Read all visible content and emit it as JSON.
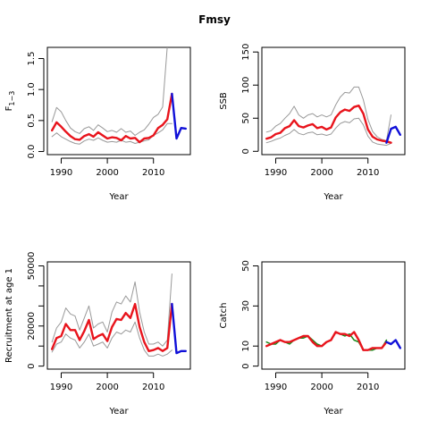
{
  "title": "Fmsy",
  "colors": {
    "history": "#e8141c",
    "projection": "#1010d8",
    "band": "#999999",
    "axis": "#000000"
  },
  "chart_data": [
    {
      "type": "line",
      "ylabel": "F",
      "ylabel_sub": "1−3",
      "xlabel": "Year",
      "xlim": [
        1987,
        2018
      ],
      "ylim": [
        -0.05,
        1.68
      ],
      "xticks": [
        1990,
        2000,
        2010
      ],
      "yticks": [
        0.0,
        0.5,
        1.0,
        1.5
      ],
      "yticklabels": [
        "0.0",
        "0.5",
        "1.0",
        "1.5"
      ],
      "series": [
        {
          "role": "upper",
          "x": [
            1988,
            1989,
            1990,
            1991,
            1992,
            1993,
            1994,
            1995,
            1996,
            1997,
            1998,
            1999,
            2000,
            2001,
            2002,
            2003,
            2004,
            2005,
            2006,
            2007,
            2008,
            2009,
            2010,
            2011,
            2012,
            2013,
            2014
          ],
          "values": [
            0.48,
            0.71,
            0.64,
            0.5,
            0.38,
            0.32,
            0.29,
            0.37,
            0.4,
            0.34,
            0.43,
            0.38,
            0.32,
            0.34,
            0.31,
            0.37,
            0.31,
            0.33,
            0.26,
            0.31,
            0.35,
            0.44,
            0.55,
            0.6,
            0.72,
            1.7,
            1.7
          ]
        },
        {
          "role": "lower",
          "x": [
            1988,
            1989,
            1990,
            1991,
            1992,
            1993,
            1994,
            1995,
            1996,
            1997,
            1998,
            1999,
            2000,
            2001,
            2002,
            2003,
            2004,
            2005,
            2006,
            2007,
            2008,
            2009,
            2010,
            2011,
            2012,
            2013,
            2014
          ],
          "values": [
            0.24,
            0.3,
            0.24,
            0.2,
            0.16,
            0.13,
            0.12,
            0.17,
            0.2,
            0.18,
            0.22,
            0.18,
            0.15,
            0.16,
            0.15,
            0.18,
            0.15,
            0.16,
            0.13,
            0.15,
            0.17,
            0.19,
            0.26,
            0.3,
            0.35,
            0.45,
            0.45
          ]
        },
        {
          "role": "history",
          "x": [
            1988,
            1989,
            1990,
            1991,
            1992,
            1993,
            1994,
            1995,
            1996,
            1997,
            1998,
            1999,
            2000,
            2001,
            2002,
            2003,
            2004,
            2005,
            2006,
            2007,
            2008,
            2009,
            2010,
            2011,
            2012,
            2013,
            2014
          ],
          "values": [
            0.34,
            0.47,
            0.4,
            0.32,
            0.25,
            0.2,
            0.19,
            0.25,
            0.28,
            0.24,
            0.31,
            0.26,
            0.21,
            0.23,
            0.22,
            0.18,
            0.25,
            0.21,
            0.22,
            0.15,
            0.21,
            0.22,
            0.26,
            0.38,
            0.43,
            0.52,
            0.93
          ]
        },
        {
          "role": "projection",
          "x": [
            2014,
            2015,
            2016,
            2017
          ],
          "values": [
            0.93,
            0.21,
            0.38,
            0.37
          ]
        }
      ]
    },
    {
      "type": "line",
      "ylabel": "SSB",
      "ylabel_sub": "",
      "xlabel": "Year",
      "xlim": [
        1987,
        2018
      ],
      "ylim": [
        -5,
        157
      ],
      "xticks": [
        1990,
        2000,
        2010
      ],
      "yticks": [
        0,
        50,
        100,
        150
      ],
      "yticklabels": [
        "0",
        "50",
        "100",
        "150"
      ],
      "series": [
        {
          "role": "upper",
          "x": [
            1988,
            1989,
            1990,
            1991,
            1992,
            1993,
            1994,
            1995,
            1996,
            1997,
            1998,
            1999,
            2000,
            2001,
            2002,
            2003,
            2004,
            2005,
            2006,
            2007,
            2008,
            2009,
            2010,
            2011,
            2012,
            2013,
            2014,
            2015
          ],
          "values": [
            29,
            31,
            38,
            42,
            50,
            57,
            68,
            55,
            50,
            55,
            57,
            52,
            55,
            52,
            55,
            70,
            82,
            89,
            88,
            97,
            97,
            78,
            48,
            30,
            22,
            18,
            16,
            55
          ]
        },
        {
          "role": "lower",
          "x": [
            1988,
            1989,
            1990,
            1991,
            1992,
            1993,
            1994,
            1995,
            1996,
            1997,
            1998,
            1999,
            2000,
            2001,
            2002,
            2003,
            2004,
            2005,
            2006,
            2007,
            2008,
            2009,
            2010,
            2011,
            2012,
            2013,
            2014,
            2015
          ],
          "values": [
            13,
            15,
            18,
            20,
            24,
            27,
            33,
            27,
            25,
            28,
            29,
            25,
            26,
            24,
            26,
            35,
            42,
            45,
            43,
            49,
            50,
            40,
            23,
            14,
            11,
            10,
            9,
            12
          ]
        },
        {
          "role": "history",
          "x": [
            1988,
            1989,
            1990,
            1991,
            1992,
            1993,
            1994,
            1995,
            1996,
            1997,
            1998,
            1999,
            2000,
            2001,
            2002,
            2003,
            2004,
            2005,
            2006,
            2007,
            2008,
            2009,
            2010,
            2011,
            2012,
            2013,
            2014,
            2015
          ],
          "values": [
            19,
            21,
            26,
            28,
            35,
            38,
            47,
            38,
            36,
            39,
            41,
            35,
            37,
            33,
            36,
            51,
            59,
            63,
            61,
            67,
            69,
            57,
            33,
            22,
            18,
            16,
            15,
            13
          ]
        },
        {
          "role": "projection",
          "x": [
            2014,
            2015,
            2016,
            2017
          ],
          "values": [
            13,
            34,
            37,
            25
          ]
        }
      ]
    },
    {
      "type": "line",
      "ylabel": "Recruitment at age 1",
      "ylabel_sub": "",
      "xlabel": "Year",
      "xlim": [
        1987,
        2018
      ],
      "ylim": [
        -1500,
        52000
      ],
      "xticks": [
        1990,
        2000,
        2010
      ],
      "yticks": [
        0,
        10000,
        20000,
        30000,
        40000,
        50000
      ],
      "yticklabels": [
        "0",
        "",
        "20000",
        "",
        "",
        "50000"
      ],
      "series": [
        {
          "role": "upper",
          "x": [
            1988,
            1989,
            1990,
            1991,
            1992,
            1993,
            1994,
            1995,
            1996,
            1997,
            1998,
            1999,
            2000,
            2001,
            2002,
            2003,
            2004,
            2005,
            2006,
            2007,
            2008,
            2009,
            2010,
            2011,
            2012,
            2013,
            2014
          ],
          "values": [
            12000,
            19000,
            22000,
            29000,
            26000,
            25000,
            18000,
            24000,
            30000,
            19000,
            21000,
            22000,
            17000,
            27000,
            32000,
            31000,
            35000,
            32000,
            42000,
            27000,
            17000,
            11000,
            11000,
            12000,
            10000,
            13000,
            46000
          ]
        },
        {
          "role": "lower",
          "x": [
            1988,
            1989,
            1990,
            1991,
            1992,
            1993,
            1994,
            1995,
            1996,
            1997,
            1998,
            1999,
            2000,
            2001,
            2002,
            2003,
            2004,
            2005,
            2006,
            2007,
            2008,
            2009,
            2010,
            2011,
            2012,
            2013,
            2014
          ],
          "values": [
            7000,
            11000,
            12000,
            16000,
            14000,
            13000,
            9000,
            12000,
            16000,
            10000,
            11000,
            12000,
            9000,
            14000,
            17000,
            16000,
            18000,
            17000,
            22000,
            14000,
            8000,
            5000,
            5000,
            6000,
            5000,
            6000,
            8000
          ]
        },
        {
          "role": "history",
          "x": [
            1988,
            1989,
            1990,
            1991,
            1992,
            1993,
            1994,
            1995,
            1996,
            1997,
            1998,
            1999,
            2000,
            2001,
            2002,
            2003,
            2004,
            2005,
            2006,
            2007,
            2008,
            2009,
            2010,
            2011,
            2012,
            2013,
            2014
          ],
          "values": [
            8500,
            14000,
            15000,
            21000,
            18000,
            18000,
            13000,
            17500,
            23000,
            13500,
            15000,
            16000,
            12500,
            19500,
            23500,
            23000,
            26500,
            24000,
            31000,
            19500,
            12000,
            7500,
            8000,
            9000,
            7500,
            9000,
            31000
          ]
        },
        {
          "role": "projection",
          "x": [
            2014,
            2015,
            2016,
            2017
          ],
          "values": [
            31000,
            6500,
            7500,
            7500
          ]
        }
      ]
    },
    {
      "type": "line",
      "ylabel": "Catch",
      "ylabel_sub": "",
      "xlabel": "Year",
      "xlim": [
        1987,
        2018
      ],
      "ylim": [
        -1.5,
        52
      ],
      "xticks": [
        1990,
        2000,
        2010
      ],
      "yticks": [
        0,
        10,
        30,
        50
      ],
      "yticklabels": [
        "0",
        "10",
        "30",
        "50"
      ],
      "series": [
        {
          "role": "observed",
          "x": [
            1988,
            1989,
            1990,
            1991,
            1992,
            1993,
            1994,
            1995,
            1996,
            1997,
            1998,
            1999,
            2000,
            2001,
            2002,
            2003,
            2004,
            2005,
            2006,
            2007,
            2008,
            2009,
            2010,
            2011,
            2012,
            2013,
            2014
          ],
          "values": [
            12,
            11,
            11,
            13,
            12,
            11,
            13,
            14,
            14,
            15,
            13,
            11,
            10,
            12,
            13,
            17,
            16,
            15,
            16,
            13,
            12,
            8,
            8,
            8,
            9,
            9,
            13
          ]
        },
        {
          "role": "history",
          "x": [
            1988,
            1989,
            1990,
            1991,
            1992,
            1993,
            1994,
            1995,
            1996,
            1997,
            1998,
            1999,
            2000,
            2001,
            2002,
            2003,
            2004,
            2005,
            2006,
            2007,
            2008,
            2009,
            2010,
            2011,
            2012,
            2013,
            2014
          ],
          "values": [
            10,
            11,
            12,
            13,
            12,
            12,
            13,
            14,
            15,
            15,
            12,
            10,
            10,
            12,
            13,
            17,
            16,
            16,
            15,
            17,
            13,
            8,
            8,
            9,
            9,
            9,
            12
          ]
        },
        {
          "role": "projection",
          "x": [
            2014,
            2015,
            2016,
            2017
          ],
          "values": [
            12,
            11,
            13,
            9
          ]
        }
      ]
    }
  ]
}
